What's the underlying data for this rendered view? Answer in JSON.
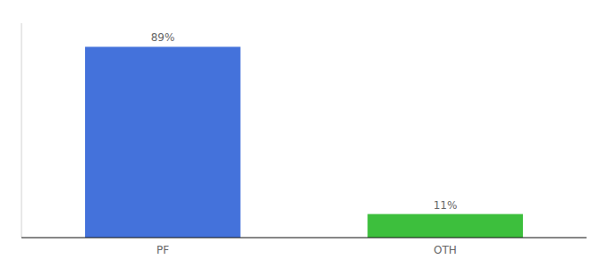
{
  "chart_data": {
    "type": "bar",
    "categories": [
      "PF",
      "OTH"
    ],
    "values": [
      89,
      11
    ],
    "value_labels": [
      "89%",
      "11%"
    ],
    "colors": [
      "#4472db",
      "#3dbf3d"
    ],
    "ylim": [
      0,
      100
    ],
    "data_labels": true,
    "tick_labels": "x",
    "grid": false
  }
}
